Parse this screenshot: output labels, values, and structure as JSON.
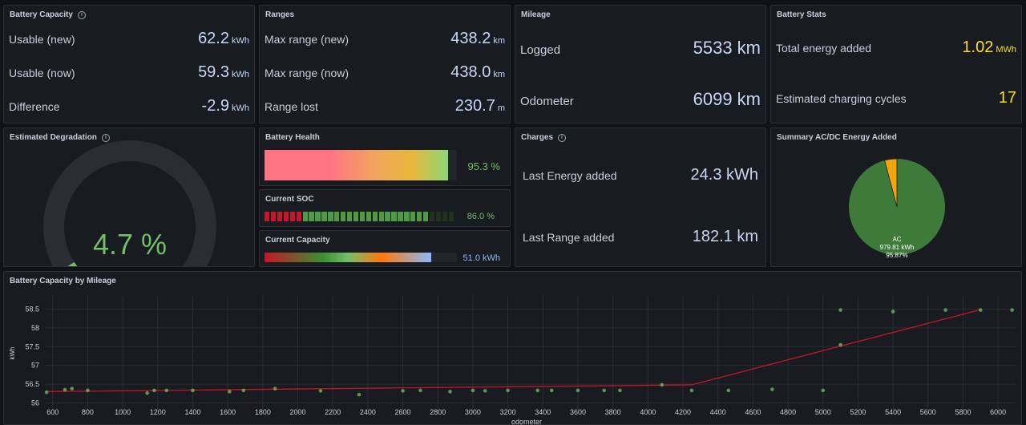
{
  "battery_capacity": {
    "title": "Battery Capacity",
    "rows": [
      {
        "label": "Usable (new)",
        "value": "62.2",
        "unit": "kWh"
      },
      {
        "label": "Usable (now)",
        "value": "59.3",
        "unit": "kWh"
      },
      {
        "label": "Difference",
        "value": "-2.9",
        "unit": "kWh"
      }
    ]
  },
  "ranges": {
    "title": "Ranges",
    "rows": [
      {
        "label": "Max range (new)",
        "value": "438.2",
        "unit": "km"
      },
      {
        "label": "Max range (now)",
        "value": "438.0",
        "unit": "km"
      },
      {
        "label": "Range lost",
        "value": "230.7",
        "unit": "m"
      }
    ]
  },
  "mileage": {
    "title": "Mileage",
    "rows": [
      {
        "label": "Logged",
        "value": "5533 km"
      },
      {
        "label": "Odometer",
        "value": "6099 km"
      }
    ]
  },
  "battery_stats": {
    "title": "Battery Stats",
    "rows": [
      {
        "label": "Total energy added",
        "value": "1.02",
        "unit": "MWh"
      },
      {
        "label": "Estimated charging cycles",
        "value": "17",
        "unit": ""
      }
    ]
  },
  "degradation": {
    "title": "Estimated Degradation",
    "value": "4.7 %",
    "fraction": 0.047
  },
  "battery_health": {
    "title": "Battery Health",
    "value": "95.3 %",
    "fraction": 0.953
  },
  "current_soc": {
    "title": "Current SOC",
    "value": "86.0 %",
    "fraction": 0.86
  },
  "current_capacity": {
    "title": "Current Capacity",
    "value": "51.0 kWh",
    "fraction": 0.865
  },
  "charges": {
    "title": "Charges",
    "rows": [
      {
        "label": "Last Energy added",
        "value": "24.3 kWh"
      },
      {
        "label": "Last Range added",
        "value": "182.1 km"
      }
    ]
  },
  "summary": {
    "title": "Summary AC/DC Energy Added",
    "slice_label": "AC",
    "slice_value": "979.81 kWh",
    "slice_percent": "95.87%",
    "ac_fraction": 0.9587,
    "colors": {
      "ac": "#3e7a3a",
      "dc": "#f2a60c"
    }
  },
  "mileage_chart": {
    "title": "Battery Capacity by Mileage"
  },
  "chart_data": {
    "type": "scatter",
    "title": "Battery Capacity by Mileage",
    "xlabel": "odometer",
    "ylabel": "kWh",
    "xlim": [
      560,
      6100
    ],
    "ylim": [
      55.9,
      58.75
    ],
    "xticks": [
      600,
      800,
      1000,
      1200,
      1400,
      1600,
      1800,
      2000,
      2200,
      2400,
      2600,
      2800,
      3000,
      3200,
      3400,
      3600,
      3800,
      4000,
      4200,
      4400,
      4600,
      4800,
      5000,
      5200,
      5400,
      5600,
      5800,
      6000
    ],
    "yticks": [
      56,
      56.5,
      57,
      57.5,
      58,
      58.5
    ],
    "points": [
      [
        565,
        56.28
      ],
      [
        670,
        56.35
      ],
      [
        710,
        56.38
      ],
      [
        800,
        56.33
      ],
      [
        1140,
        56.26
      ],
      [
        1180,
        56.33
      ],
      [
        1250,
        56.33
      ],
      [
        1400,
        56.33
      ],
      [
        1610,
        56.3
      ],
      [
        1690,
        56.33
      ],
      [
        1870,
        56.38
      ],
      [
        2130,
        56.32
      ],
      [
        2350,
        56.22
      ],
      [
        2600,
        56.32
      ],
      [
        2700,
        56.33
      ],
      [
        2870,
        56.3
      ],
      [
        3000,
        56.33
      ],
      [
        3070,
        56.32
      ],
      [
        3200,
        56.33
      ],
      [
        3370,
        56.33
      ],
      [
        3450,
        56.33
      ],
      [
        3600,
        56.33
      ],
      [
        3750,
        56.33
      ],
      [
        3840,
        56.33
      ],
      [
        4080,
        56.48
      ],
      [
        4250,
        56.33
      ],
      [
        4460,
        56.33
      ],
      [
        4710,
        56.36
      ],
      [
        5000,
        56.33
      ],
      [
        5100,
        57.55
      ],
      [
        5100,
        58.48
      ],
      [
        5400,
        58.44
      ],
      [
        5700,
        58.48
      ],
      [
        5900,
        58.48
      ],
      [
        6080,
        58.48
      ]
    ],
    "trend": [
      [
        565,
        56.3
      ],
      [
        4250,
        56.48
      ],
      [
        5900,
        58.49
      ]
    ],
    "colors": {
      "points": "#73bf69",
      "trend": "#c4162a",
      "grid": "#2a2d33"
    }
  }
}
